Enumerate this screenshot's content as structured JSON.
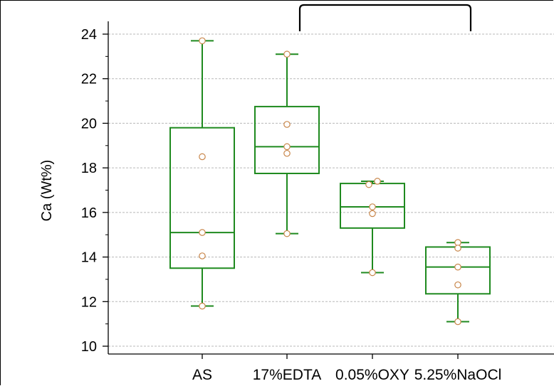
{
  "chart_data": {
    "type": "box",
    "ylabel": "Ca (Wt%)",
    "xlabel": "",
    "title": "",
    "ylim": [
      9.7,
      24.3
    ],
    "yticks": [
      10,
      12,
      14,
      16,
      18,
      20,
      22,
      24
    ],
    "grid": true,
    "box_color": "#1f8a1f",
    "point_color": "#c8864a",
    "categories": [
      "AS",
      "17%EDTA",
      "0.05%OXY",
      "5.25%NaOCl"
    ],
    "boxes": [
      {
        "category": "AS",
        "whisker_low": 11.8,
        "q1": 13.5,
        "median": 15.1,
        "q3": 19.8,
        "whisker_high": 23.7,
        "points": [
          23.7,
          18.5,
          15.1,
          14.05,
          11.8
        ]
      },
      {
        "category": "17%EDTA",
        "whisker_low": 15.05,
        "q1": 17.75,
        "median": 18.95,
        "q3": 20.75,
        "whisker_high": 23.1,
        "points": [
          23.1,
          19.95,
          18.95,
          18.65,
          15.05
        ]
      },
      {
        "category": "0.05%OXY",
        "whisker_low": 13.3,
        "q1": 15.3,
        "median": 16.25,
        "q3": 17.3,
        "whisker_high": 17.4,
        "points": [
          17.4,
          17.25,
          16.25,
          15.95,
          13.3
        ]
      },
      {
        "category": "5.25%NaOCl",
        "whisker_low": 11.1,
        "q1": 12.35,
        "median": 13.55,
        "q3": 14.45,
        "whisker_high": 14.65,
        "points": [
          14.65,
          14.4,
          13.55,
          12.75,
          11.1
        ]
      }
    ],
    "annotations": [
      {
        "type": "bracket",
        "from_category": "17%EDTA",
        "to_category": "5.25%NaOCl"
      }
    ]
  }
}
